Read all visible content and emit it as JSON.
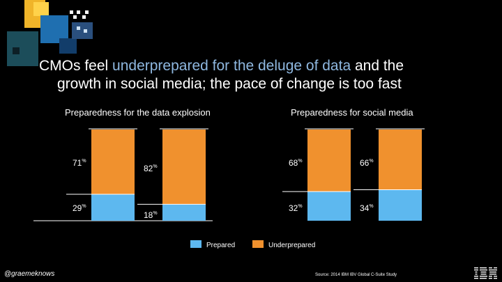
{
  "title": {
    "part1": "CMOs feel ",
    "highlight": "underprepared for the deluge of data",
    "part2": " and the",
    "line2": "growth in social media; the pace of change is too fast"
  },
  "colors": {
    "prepared": "#5db8ef",
    "underprepared": "#f0912e",
    "title_highlight": "#8fb8e0"
  },
  "chart_data": [
    {
      "type": "bar",
      "stacked": true,
      "title": "Preparedness for the data explosion",
      "categories": [
        "",
        ""
      ],
      "series": [
        {
          "name": "Prepared",
          "values": [
            29,
            18
          ]
        },
        {
          "name": "Underprepared",
          "values": [
            71,
            82
          ]
        }
      ],
      "value_labels": [
        {
          "prepared": "29",
          "underprepared": "71"
        },
        {
          "prepared": "18",
          "underprepared": "82"
        }
      ],
      "unit": "%",
      "ylim": [
        0,
        100
      ]
    },
    {
      "type": "bar",
      "stacked": true,
      "title": "Preparedness for social media",
      "categories": [
        "",
        ""
      ],
      "series": [
        {
          "name": "Prepared",
          "values": [
            32,
            34
          ]
        },
        {
          "name": "Underprepared",
          "values": [
            68,
            66
          ]
        }
      ],
      "value_labels": [
        {
          "prepared": "32",
          "underprepared": "68"
        },
        {
          "prepared": "34",
          "underprepared": "66"
        }
      ],
      "unit": "%",
      "ylim": [
        0,
        100
      ]
    }
  ],
  "legend": {
    "prepared": "Prepared",
    "underprepared": "Underprepared"
  },
  "footer": {
    "handle": "@graemeknows",
    "source": "Source: 2014 IBM IBV Global C-Suite Study"
  },
  "logo": {
    "text": "IBM"
  }
}
